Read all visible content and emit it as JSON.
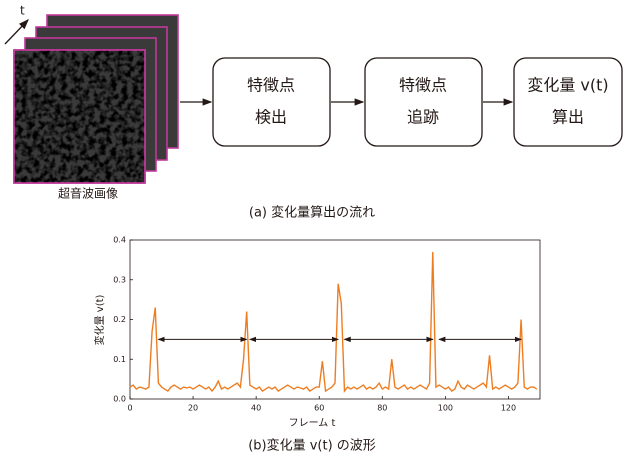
{
  "diagram": {
    "time_label": "t",
    "image_label": "超音波画像",
    "nodes": [
      {
        "lines": [
          "特徴点",
          "検出"
        ]
      },
      {
        "lines": [
          "特徴点",
          "追跡"
        ]
      },
      {
        "lines": [
          "変化量 v(t)",
          "算出"
        ]
      }
    ],
    "caption": "(a) 変化量算出の流れ"
  },
  "chart_data": {
    "type": "line",
    "xlabel": "フレーム t",
    "ylabel": "変化量 v(t)",
    "caption": "(b)変化量  v(t) の波形",
    "xlim": [
      0,
      130
    ],
    "ylim": [
      0,
      0.4
    ],
    "xticks": [
      0,
      20,
      40,
      60,
      80,
      100,
      120
    ],
    "yticks": [
      {
        "value": 0,
        "label": "0.0"
      },
      0.1,
      0.2,
      0.3,
      0.4
    ],
    "x": [
      0,
      1,
      2,
      3,
      4,
      5,
      6,
      7,
      8,
      9,
      10,
      11,
      12,
      13,
      14,
      15,
      16,
      17,
      18,
      19,
      20,
      21,
      22,
      23,
      24,
      25,
      26,
      27,
      28,
      29,
      30,
      31,
      32,
      33,
      34,
      35,
      36,
      37,
      38,
      39,
      40,
      41,
      42,
      43,
      44,
      45,
      46,
      47,
      48,
      49,
      50,
      51,
      52,
      53,
      54,
      55,
      56,
      57,
      58,
      59,
      60,
      61,
      62,
      63,
      64,
      65,
      66,
      67,
      68,
      69,
      70,
      71,
      72,
      73,
      74,
      75,
      76,
      77,
      78,
      79,
      80,
      81,
      82,
      83,
      84,
      85,
      86,
      87,
      88,
      89,
      90,
      91,
      92,
      93,
      94,
      95,
      96,
      97,
      98,
      99,
      100,
      101,
      102,
      103,
      104,
      105,
      106,
      107,
      108,
      109,
      110,
      111,
      112,
      113,
      114,
      115,
      116,
      117,
      118,
      119,
      120,
      121,
      122,
      123,
      124,
      125,
      126,
      127,
      128,
      129
    ],
    "series": [
      {
        "color": "#ee7d22",
        "values": [
          0.03,
          0.035,
          0.025,
          0.03,
          0.028,
          0.025,
          0.03,
          0.17,
          0.23,
          0.04,
          0.03,
          0.025,
          0.02,
          0.03,
          0.035,
          0.03,
          0.025,
          0.03,
          0.028,
          0.03,
          0.025,
          0.03,
          0.035,
          0.03,
          0.025,
          0.03,
          0.02,
          0.03,
          0.045,
          0.025,
          0.03,
          0.025,
          0.03,
          0.035,
          0.04,
          0.03,
          0.1,
          0.22,
          0.035,
          0.03,
          0.025,
          0.03,
          0.02,
          0.025,
          0.03,
          0.025,
          0.03,
          0.02,
          0.025,
          0.03,
          0.035,
          0.03,
          0.025,
          0.03,
          0.028,
          0.025,
          0.03,
          0.02,
          0.025,
          0.03,
          0.03,
          0.095,
          0.02,
          0.025,
          0.03,
          0.04,
          0.29,
          0.24,
          0.02,
          0.03,
          0.025,
          0.03,
          0.025,
          0.03,
          0.035,
          0.025,
          0.03,
          0.025,
          0.03,
          0.04,
          0.025,
          0.03,
          0.025,
          0.1,
          0.03,
          0.025,
          0.03,
          0.035,
          0.025,
          0.03,
          0.025,
          0.03,
          0.035,
          0.03,
          0.025,
          0.04,
          0.37,
          0.03,
          0.035,
          0.03,
          0.025,
          0.03,
          0.02,
          0.025,
          0.045,
          0.03,
          0.025,
          0.035,
          0.03,
          0.025,
          0.03,
          0.035,
          0.04,
          0.03,
          0.11,
          0.025,
          0.03,
          0.025,
          0.03,
          0.035,
          0.03,
          0.025,
          0.03,
          0.04,
          0.2,
          0.03,
          0.025,
          0.03,
          0.03,
          0.025
        ]
      }
    ],
    "intervals": {
      "y": 0.15,
      "spans": [
        [
          9,
          37
        ],
        [
          38,
          66
        ],
        [
          68,
          96
        ],
        [
          98,
          124
        ]
      ]
    }
  }
}
